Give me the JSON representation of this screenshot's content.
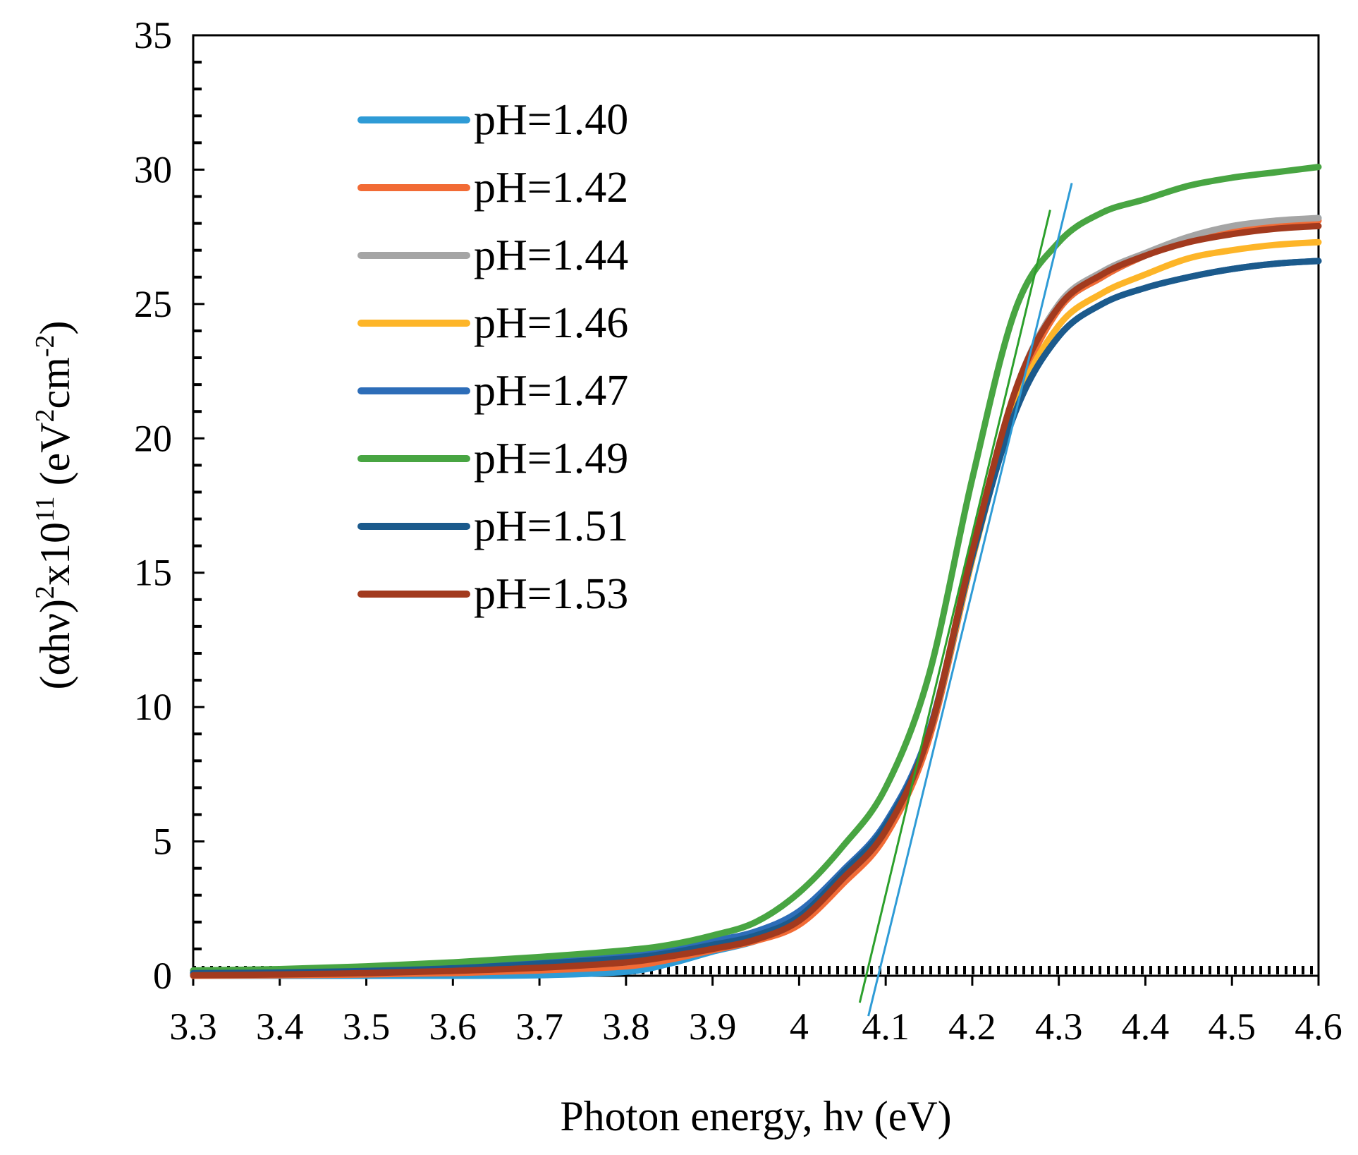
{
  "chart_data": {
    "type": "line",
    "title": "",
    "xlabel": "Photon energy, hν (eV)",
    "ylabel": {
      "prefix": "(αhν)",
      "exp1": "2",
      "mid": "x10",
      "exp2": "11",
      "unit_open": " (eV",
      "exp3": "2",
      "unit_mid": "cm",
      "exp4": "-2",
      "unit_close": ")"
    },
    "xlim": [
      3.3,
      4.6
    ],
    "ylim": [
      0,
      35
    ],
    "x_ticks": [
      3.3,
      3.4,
      3.5,
      3.6,
      3.7,
      3.8,
      3.9,
      4.0,
      4.1,
      4.2,
      4.3,
      4.4,
      4.5,
      4.6
    ],
    "x_tick_labels": [
      "3.3",
      "3.4",
      "3.5",
      "3.6",
      "3.7",
      "3.8",
      "3.9",
      "4",
      "4.1",
      "4.2",
      "4.3",
      "4.4",
      "4.5",
      "4.6"
    ],
    "y_ticks": [
      0,
      5,
      10,
      15,
      20,
      25,
      30,
      35
    ],
    "y_tick_labels": [
      "0",
      "5",
      "10",
      "15",
      "20",
      "25",
      "30",
      "35"
    ],
    "grid": false,
    "legend_position": "top-left",
    "x": [
      3.3,
      3.4,
      3.5,
      3.6,
      3.7,
      3.8,
      3.85,
      3.9,
      3.95,
      4.0,
      4.05,
      4.1,
      4.15,
      4.2,
      4.25,
      4.3,
      4.35,
      4.4,
      4.45,
      4.5,
      4.55,
      4.6
    ],
    "series": [
      {
        "name": "pH=1.40",
        "color": "#2e9bd6",
        "width": 9,
        "values": [
          0.0,
          0.0,
          0.0,
          0.0,
          0.02,
          0.15,
          0.45,
          0.9,
          1.3,
          2.0,
          3.6,
          5.5,
          9.0,
          15.5,
          21.5,
          24.8,
          26.0,
          26.8,
          27.4,
          27.8,
          28.0,
          28.2
        ]
      },
      {
        "name": "pH=1.42",
        "color": "#f26b35",
        "width": 9,
        "values": [
          0.0,
          0.02,
          0.05,
          0.1,
          0.2,
          0.35,
          0.6,
          0.95,
          1.3,
          1.9,
          3.4,
          5.2,
          8.8,
          15.5,
          21.5,
          24.8,
          26.0,
          26.8,
          27.4,
          27.8,
          28.0,
          28.1
        ]
      },
      {
        "name": "pH=1.44",
        "color": "#a5a5a5",
        "width": 9,
        "values": [
          0.05,
          0.1,
          0.15,
          0.2,
          0.32,
          0.5,
          0.75,
          1.05,
          1.4,
          2.1,
          3.6,
          5.4,
          9.0,
          15.8,
          21.8,
          25.0,
          26.2,
          26.9,
          27.5,
          27.9,
          28.1,
          28.2
        ]
      },
      {
        "name": "pH=1.46",
        "color": "#fdb528",
        "width": 9,
        "values": [
          0.05,
          0.1,
          0.15,
          0.22,
          0.35,
          0.55,
          0.8,
          1.1,
          1.45,
          2.2,
          3.7,
          5.5,
          9.0,
          15.5,
          21.2,
          24.2,
          25.4,
          26.1,
          26.7,
          27.0,
          27.2,
          27.3
        ]
      },
      {
        "name": "pH=1.47",
        "color": "#2d6db8",
        "width": 9,
        "values": [
          0.1,
          0.15,
          0.22,
          0.35,
          0.55,
          0.8,
          1.0,
          1.3,
          1.65,
          2.4,
          3.9,
          5.7,
          9.1,
          15.6,
          21.0,
          23.8,
          25.0,
          25.6,
          26.0,
          26.3,
          26.5,
          26.6
        ]
      },
      {
        "name": "pH=1.49",
        "color": "#48a542",
        "width": 9,
        "values": [
          0.2,
          0.25,
          0.35,
          0.5,
          0.7,
          0.95,
          1.15,
          1.5,
          2.0,
          3.1,
          4.8,
          7.0,
          11.2,
          18.5,
          24.8,
          27.3,
          28.4,
          28.9,
          29.4,
          29.7,
          29.9,
          30.1
        ]
      },
      {
        "name": "pH=1.51",
        "color": "#1b5a8c",
        "width": 9,
        "values": [
          0.1,
          0.12,
          0.18,
          0.28,
          0.45,
          0.65,
          0.85,
          1.15,
          1.5,
          2.2,
          3.8,
          5.6,
          9.0,
          15.6,
          21.0,
          23.8,
          25.0,
          25.6,
          26.0,
          26.3,
          26.5,
          26.6
        ]
      },
      {
        "name": "pH=1.53",
        "color": "#a23a1e",
        "width": 9,
        "values": [
          0.02,
          0.05,
          0.1,
          0.18,
          0.3,
          0.5,
          0.72,
          1.0,
          1.35,
          2.05,
          3.6,
          5.4,
          9.0,
          15.8,
          21.8,
          24.9,
          26.1,
          26.8,
          27.3,
          27.6,
          27.8,
          27.9
        ]
      }
    ],
    "tangent_lines": [
      {
        "name": "tangent-green",
        "color": "#2ca02c",
        "width": 3,
        "x": [
          4.07,
          4.29
        ],
        "y": [
          -1.0,
          28.5
        ]
      },
      {
        "name": "tangent-blue",
        "color": "#2e9bd6",
        "width": 3,
        "x": [
          4.08,
          4.315
        ],
        "y": [
          -1.5,
          29.5
        ]
      }
    ]
  }
}
